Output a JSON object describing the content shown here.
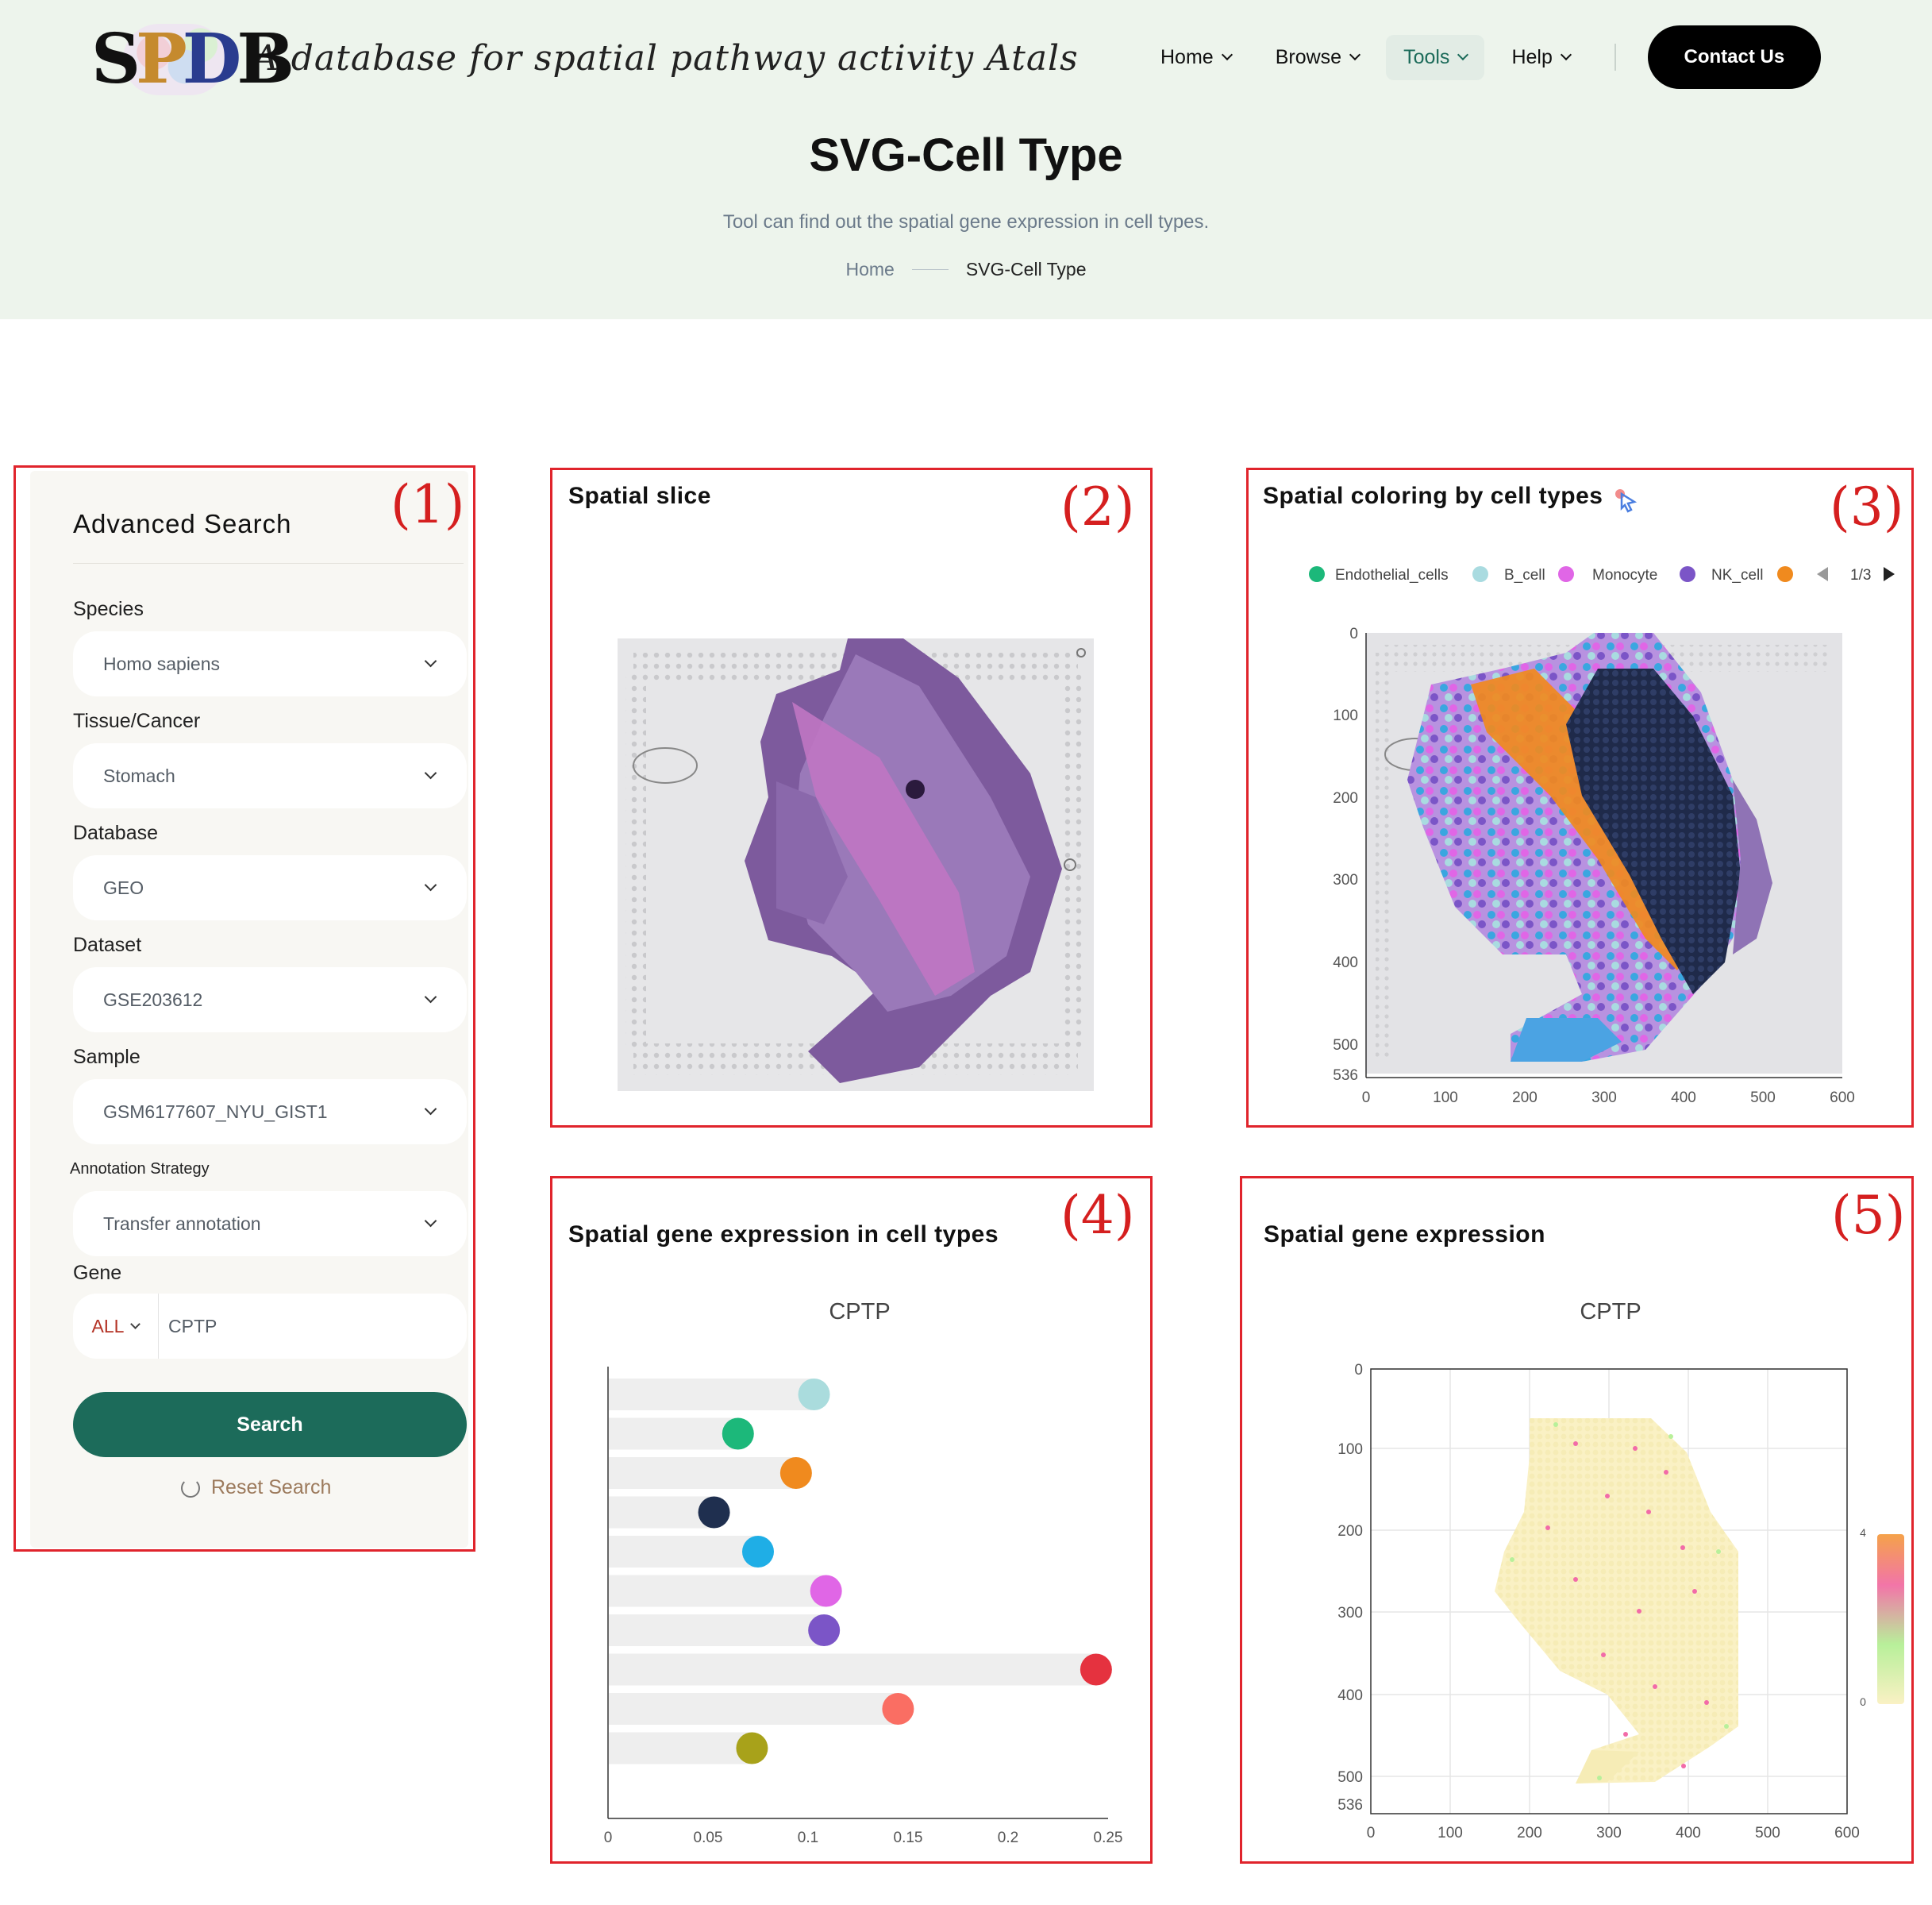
{
  "header": {
    "logo_text": "SPDB",
    "tagline": "A database for spatial pathway activity Atals",
    "nav": [
      "Home",
      "Browse",
      "Tools",
      "Help"
    ],
    "active_nav": "Tools",
    "contact": "Contact Us",
    "title": "SVG-Cell Type",
    "subtitle": "Tool can find out the spatial gene expression in cell types.",
    "breadcrumb": {
      "home": "Home",
      "current": "SVG-Cell Type"
    }
  },
  "panel_numbers": [
    "(1)",
    "(2)",
    "(3)",
    "(4)",
    "(5)"
  ],
  "search": {
    "title": "Advanced Search",
    "fields": [
      {
        "label": "Species",
        "value": "Homo sapiens"
      },
      {
        "label": "Tissue/Cancer",
        "value": "Stomach"
      },
      {
        "label": "Database",
        "value": "GEO"
      },
      {
        "label": "Dataset",
        "value": "GSE203612"
      },
      {
        "label": "Sample",
        "value": "GSM6177607_NYU_GIST1"
      },
      {
        "label": "Annotation Strategy",
        "value": "Transfer annotation"
      }
    ],
    "gene_label": "Gene",
    "gene_scope": "ALL",
    "gene_value": "CPTP",
    "search_button": "Search",
    "reset_button": "Reset Search"
  },
  "spatial_slice": {
    "title": "Spatial slice"
  },
  "spatial_coloring": {
    "title": "Spatial coloring by cell types",
    "legend": [
      {
        "name": "Endothelial_cells",
        "color": "#1cb87a"
      },
      {
        "name": "B_cell",
        "color": "#a9dbe0"
      },
      {
        "name": "Monocyte",
        "color": "#e066e6"
      },
      {
        "name": "NK_cell",
        "color": "#7b55c7"
      },
      {
        "name": "",
        "color": "#f08a1e"
      }
    ],
    "legend_page": "1/3",
    "x_ticks": [
      "0",
      "100",
      "200",
      "300",
      "400",
      "500",
      "600"
    ],
    "y_ticks": [
      "0",
      "100",
      "200",
      "300",
      "400",
      "500",
      "536"
    ]
  },
  "gene_in_cell_types": {
    "title": "Spatial gene expression in cell types",
    "chart_data": {
      "type": "scatter",
      "title": "CPTP",
      "xlim": [
        0,
        0.25
      ],
      "x_ticks": [
        "0",
        "0.05",
        "0.1",
        "0.15",
        "0.2",
        "0.25"
      ],
      "values": [
        0.103,
        0.065,
        0.094,
        0.053,
        0.075,
        0.109,
        0.108,
        0.244,
        0.145,
        0.072
      ],
      "colors": [
        "#aadcdd",
        "#1cb87a",
        "#f08a1e",
        "#1f2f4f",
        "#1faee6",
        "#e066e6",
        "#7b55c7",
        "#e5323f",
        "#fa6e63",
        "#a8a21a"
      ]
    }
  },
  "gene_expression": {
    "title": "Spatial gene expression",
    "chart_title": "CPTP",
    "x_ticks": [
      "0",
      "100",
      "200",
      "300",
      "400",
      "500",
      "600"
    ],
    "y_ticks": [
      "0",
      "100",
      "200",
      "300",
      "400",
      "500",
      "536"
    ],
    "scale_ticks": [
      "4",
      "0"
    ]
  }
}
